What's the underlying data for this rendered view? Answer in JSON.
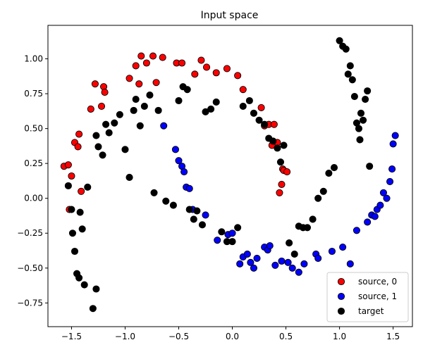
{
  "chart_data": {
    "type": "scatter",
    "title": "Input space",
    "xlabel": "",
    "ylabel": "",
    "xlim": [
      -1.72,
      1.68
    ],
    "ylim": [
      -0.92,
      1.24
    ],
    "xticks": [
      -1.5,
      -1.0,
      -0.5,
      0.0,
      0.5,
      1.0,
      1.5
    ],
    "xtick_labels": [
      "−1.5",
      "−1.0",
      "−0.5",
      "0.0",
      "0.5",
      "1.0",
      "1.5"
    ],
    "yticks": [
      -0.75,
      -0.5,
      -0.25,
      0.0,
      0.25,
      0.5,
      0.75,
      1.0
    ],
    "ytick_labels": [
      "−0.75",
      "−0.50",
      "−0.25",
      "0.00",
      "0.25",
      "0.50",
      "0.75",
      "1.00"
    ],
    "grid": false,
    "legend_position": "lower-right",
    "series": [
      {
        "name": "source, 0",
        "color": "#ff0000",
        "x": [
          -1.57,
          -1.53,
          -1.52,
          -1.5,
          -1.47,
          -1.44,
          -1.43,
          -1.41,
          -1.32,
          -1.28,
          -1.22,
          -1.2,
          -1.19,
          -0.96,
          -0.9,
          -0.87,
          -0.85,
          -0.8,
          -0.74,
          -0.71,
          -0.65,
          -0.52,
          -0.47,
          -0.35,
          -0.29,
          -0.24,
          -0.15,
          -0.05,
          0.05,
          0.1,
          0.27,
          0.3,
          0.34,
          0.37,
          0.39,
          0.42,
          0.44,
          0.46,
          0.47,
          0.48,
          0.51
        ],
        "y": [
          0.23,
          0.24,
          -0.08,
          0.16,
          0.4,
          0.37,
          0.46,
          0.05,
          0.64,
          0.82,
          0.66,
          0.8,
          0.76,
          0.86,
          0.95,
          0.82,
          1.02,
          0.97,
          1.02,
          0.83,
          1.01,
          0.97,
          0.97,
          0.89,
          0.99,
          0.94,
          0.9,
          0.93,
          0.88,
          0.78,
          0.65,
          0.52,
          0.53,
          0.38,
          0.53,
          0.4,
          0.04,
          0.1,
          0.21,
          0.2,
          0.19
        ]
      },
      {
        "name": "source, 1",
        "color": "#0000ff",
        "x": [
          -0.64,
          -0.53,
          -0.5,
          -0.47,
          -0.45,
          -0.43,
          -0.4,
          -0.37,
          -0.25,
          -0.14,
          -0.04,
          0.0,
          0.07,
          0.1,
          0.14,
          0.17,
          0.2,
          0.23,
          0.3,
          0.33,
          0.35,
          0.4,
          0.46,
          0.52,
          0.56,
          0.62,
          0.67,
          0.78,
          0.8,
          0.93,
          1.03,
          1.1,
          1.16,
          1.26,
          1.3,
          1.33,
          1.35,
          1.38,
          1.41,
          1.44,
          1.47,
          1.49,
          1.5,
          1.52
        ],
        "y": [
          0.52,
          0.35,
          0.27,
          0.23,
          0.19,
          0.08,
          0.07,
          -0.08,
          -0.12,
          -0.3,
          -0.26,
          -0.25,
          -0.47,
          -0.42,
          -0.4,
          -0.46,
          -0.5,
          -0.43,
          -0.35,
          -0.37,
          -0.34,
          -0.48,
          -0.45,
          -0.46,
          -0.5,
          -0.53,
          -0.47,
          -0.4,
          -0.43,
          -0.38,
          -0.35,
          -0.47,
          -0.23,
          -0.17,
          -0.12,
          -0.13,
          -0.08,
          -0.05,
          0.04,
          0.0,
          0.12,
          0.21,
          0.39,
          0.45
        ]
      },
      {
        "name": "target",
        "color": "#000000",
        "x": [
          -1.53,
          -1.5,
          -1.49,
          -1.47,
          -1.45,
          -1.43,
          -1.42,
          -1.4,
          -1.38,
          -1.35,
          -1.3,
          -1.27,
          -1.27,
          -1.25,
          -1.21,
          -1.18,
          -1.15,
          -1.1,
          -1.05,
          -1.0,
          -0.96,
          -0.92,
          -0.9,
          -0.86,
          -0.82,
          -0.77,
          -0.73,
          -0.69,
          -0.62,
          -0.55,
          -0.5,
          -0.46,
          -0.42,
          -0.4,
          -0.36,
          -0.33,
          -0.28,
          -0.25,
          -0.2,
          -0.15,
          -0.1,
          -0.05,
          0.0,
          0.05,
          0.1,
          0.16,
          0.2,
          0.25,
          0.3,
          0.34,
          0.38,
          0.42,
          0.45,
          0.48,
          0.53,
          0.58,
          0.62,
          0.66,
          0.7,
          0.75,
          0.8,
          0.85,
          0.9,
          0.95,
          1.0,
          1.03,
          1.06,
          1.08,
          1.1,
          1.12,
          1.14,
          1.16,
          1.18,
          1.19,
          1.2,
          1.22,
          1.24,
          1.26,
          1.28
        ],
        "y": [
          0.09,
          -0.08,
          -0.25,
          -0.38,
          -0.54,
          -0.57,
          -0.1,
          -0.22,
          -0.62,
          0.08,
          -0.79,
          -0.65,
          0.45,
          0.37,
          0.31,
          0.53,
          0.47,
          0.54,
          0.6,
          0.35,
          0.15,
          0.63,
          0.71,
          0.52,
          0.66,
          0.74,
          0.04,
          0.63,
          -0.02,
          -0.05,
          0.7,
          0.8,
          0.78,
          -0.08,
          -0.15,
          -0.09,
          -0.19,
          0.62,
          0.64,
          0.69,
          -0.24,
          -0.31,
          -0.31,
          -0.21,
          0.66,
          0.7,
          0.61,
          0.56,
          0.53,
          0.43,
          0.41,
          0.36,
          0.26,
          0.38,
          -0.32,
          -0.4,
          -0.2,
          -0.21,
          -0.21,
          -0.15,
          0.0,
          0.05,
          0.18,
          0.22,
          1.13,
          1.09,
          1.07,
          0.89,
          0.95,
          0.85,
          0.73,
          0.54,
          0.5,
          0.42,
          0.61,
          0.56,
          0.71,
          0.77,
          0.23
        ]
      }
    ]
  }
}
